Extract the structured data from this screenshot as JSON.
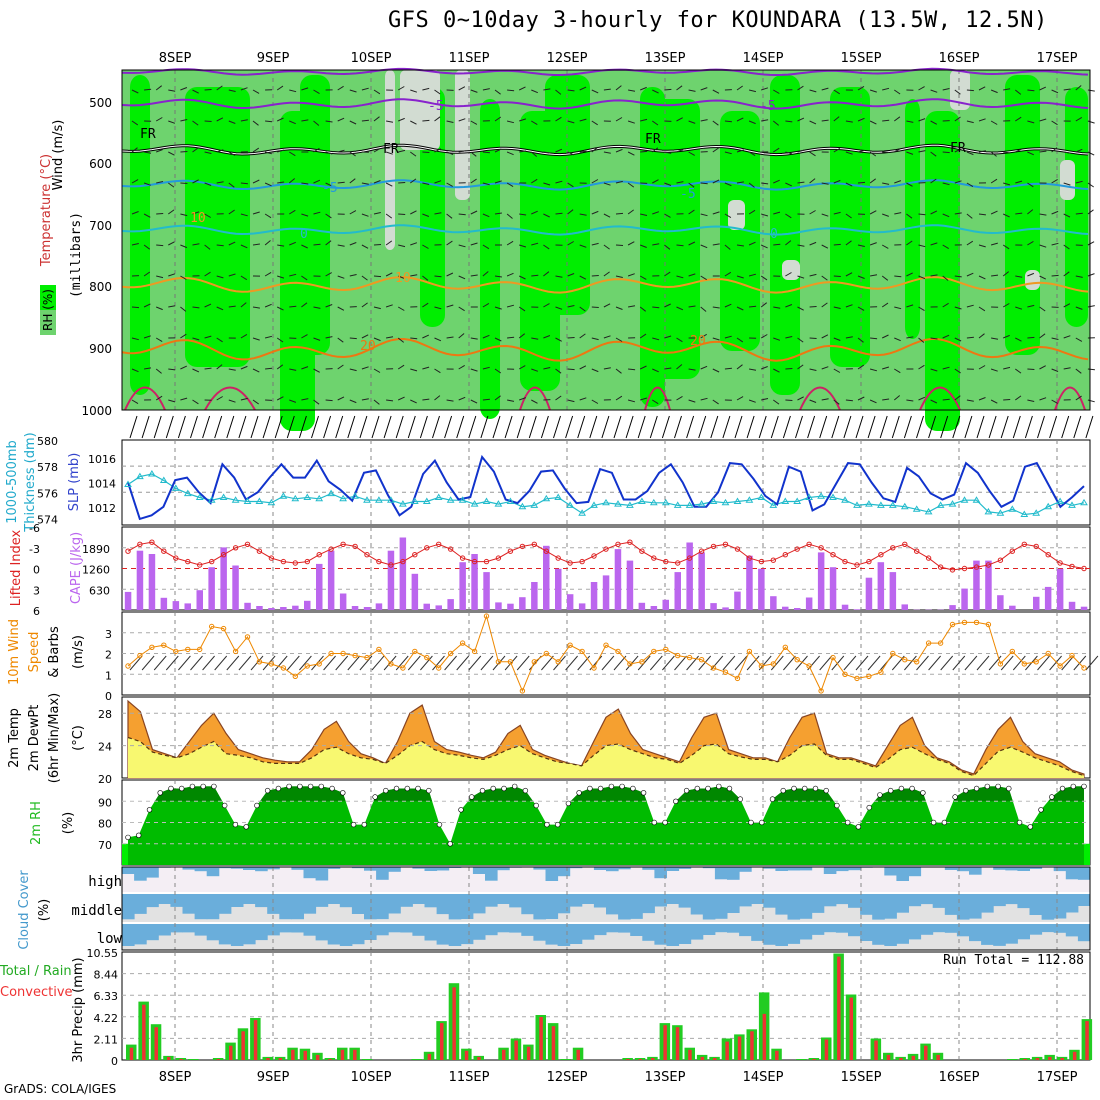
{
  "title": "GFS 0~10day 3-hourly for KOUNDARA (13.5W, 12.5N)",
  "footer": "GrADS: COLA/IGES",
  "dates": [
    "8SEP",
    "9SEP",
    "10SEP",
    "11SEP",
    "12SEP",
    "13SEP",
    "14SEP",
    "15SEP",
    "16SEP",
    "17SEP"
  ],
  "colors": {
    "rh_bright": "#00ee00",
    "rh_mid": "#6ed36e",
    "rh_pale": "#d2dcd2",
    "frame": "#000000",
    "grid": "#999999",
    "thickness": "#22bbcc",
    "slp": "#1133cc",
    "lifted": "#dd2222",
    "cape": "#bb66ee",
    "wind10": "#ee8800",
    "temp_fill": "#f5a030",
    "dew_fill": "#f8f870",
    "rh_dark": "#008800",
    "rh_green": "#00bb00",
    "cloud_blue": "#6aaedb",
    "cloud_gray": "#e2e2e2",
    "cloud_high_bg": "#f4eef4",
    "precip_total": "#22cc22",
    "precip_conv": "#ee3333"
  },
  "panels": {
    "upper": {
      "labels": {
        "wind": "Wind (m/s)",
        "temp": "Temperature (°C)",
        "rh": "RH (%)",
        "unit": "(millibars)"
      },
      "yticks": [
        "500",
        "600",
        "700",
        "800",
        "900",
        "1000"
      ],
      "contour_labels": [
        "-5",
        "-5",
        "FR",
        "FR",
        "FR",
        "FR",
        "-5",
        "-5",
        "0",
        "0",
        "10",
        "10",
        "20",
        "20"
      ]
    },
    "thickness": {
      "label1": "1000-500mb",
      "label2": "Thickness (dm)",
      "label3": "SLP (mb)",
      "yticks_left": [
        "580",
        "578",
        "576",
        "574"
      ],
      "yticks_right": [
        "1016",
        "1014",
        "1012"
      ]
    },
    "lifted": {
      "label1": "Lifted Index",
      "label2": "CAPE (J/kg)",
      "yticks_left": [
        "-6",
        "-3",
        "0",
        "3",
        "6"
      ],
      "yticks_right": [
        "1890",
        "1260",
        "630"
      ]
    },
    "wind10": {
      "label1": "10m Wind",
      "label2": "Speed",
      "label3": "& Barbs",
      "unit": "(m/s)",
      "yticks": [
        "3",
        "2",
        "1",
        "0"
      ]
    },
    "temp2m": {
      "label1": "2m Temp",
      "label2": "2m DewPt",
      "label3": "(6hr Min/Max)",
      "unit": "(°C)",
      "yticks": [
        "28",
        "24",
        "20"
      ]
    },
    "rh2m": {
      "label1": "2m RH",
      "unit": "(%)",
      "yticks": [
        "90",
        "80",
        "70"
      ]
    },
    "cloud": {
      "label1": "Cloud Cover",
      "unit": "(%)",
      "levels": [
        "high",
        "middle",
        "low"
      ]
    },
    "precip": {
      "label1": "Total / Rain",
      "label2": "Convective",
      "unit": "3hr Precip (mm)",
      "yticks": [
        "10.55",
        "8.44",
        "6.33",
        "4.22",
        "2.11",
        "0"
      ],
      "run_total": "Run Total = 112.88"
    }
  },
  "chart_data": [
    {
      "type": "line",
      "name": "thickness_slp",
      "x_step_hours": 3,
      "thickness_dm": [
        576.6,
        577.2,
        577.4,
        576.9,
        576.3,
        575.9,
        575.6,
        575.4,
        575.6,
        575.4,
        575.3,
        575.3,
        575.2,
        575.7,
        575.5,
        575.6,
        575.5,
        575.9,
        575.5,
        575.7,
        575.4,
        575.4,
        575.4,
        575.1,
        575.3,
        575.3,
        575.6,
        575.4,
        575.4,
        575.1,
        575.3,
        575.1,
        575.3,
        574.9,
        575.0,
        575.5,
        575.6,
        575.0,
        574.4,
        575.0,
        575.2,
        575.1,
        575.0,
        575.3,
        575.2,
        575.2,
        575.0,
        575.0,
        575.1,
        575.3,
        575.2,
        575.3,
        575.4,
        575.6,
        575.0,
        575.3,
        575.3,
        575.6,
        575.7,
        575.6,
        575.4,
        575.0,
        575.1,
        575.0,
        575.0,
        574.9,
        574.7,
        574.5,
        575.0,
        575.1,
        575.4,
        575.4,
        574.5,
        574.4,
        574.7,
        574.3,
        574.4,
        574.9,
        575.3,
        575.0,
        575.2
      ],
      "slp_mb": [
        1014.0,
        1011.0,
        1011.3,
        1012.0,
        1014.2,
        1014.4,
        1013.2,
        1012.3,
        1015.5,
        1014.4,
        1012.6,
        1013.2,
        1014.4,
        1015.5,
        1014.4,
        1014.4,
        1015.8,
        1014.1,
        1013.4,
        1012.5,
        1014.8,
        1015.0,
        1013.0,
        1011.3,
        1012.0,
        1014.7,
        1015.8,
        1014.0,
        1012.6,
        1012.8,
        1016.1,
        1014.9,
        1012.6,
        1012.3,
        1013.3,
        1014.9,
        1015.0,
        1013.5,
        1012.3,
        1012.4,
        1015.1,
        1014.8,
        1012.6,
        1012.6,
        1013.3,
        1014.8,
        1015.5,
        1014.0,
        1012.0,
        1012.0,
        1013.2,
        1015.6,
        1015.5,
        1014.3,
        1012.9,
        1012.2,
        1015.3,
        1014.9,
        1011.7,
        1012.2,
        1013.9,
        1015.6,
        1015.5,
        1014.0,
        1012.7,
        1012.4,
        1015.2,
        1014.5,
        1013.1,
        1012.6,
        1013.0,
        1015.6,
        1014.8,
        1013.3,
        1012.0,
        1012.5,
        1015.3,
        1015.6,
        1013.8,
        1012.0,
        1012.8,
        1013.7
      ]
    },
    {
      "type": "bar",
      "name": "lifted_index_cape",
      "lifted_index": [
        -2.5,
        -3.5,
        -3.8,
        -2.5,
        -1.5,
        -1.0,
        -0.5,
        -1.0,
        -2.0,
        -3.0,
        -3.5,
        -2.5,
        -1.5,
        -1.0,
        -0.8,
        -1.0,
        -2.0,
        -2.8,
        -3.5,
        -3.2,
        -2.0,
        -1.0,
        -0.5,
        -1.0,
        -2.0,
        -3.0,
        -3.5,
        -2.8,
        -1.5,
        -1.0,
        -1.0,
        -1.5,
        -2.5,
        -3.2,
        -3.5,
        -2.5,
        -1.5,
        -0.8,
        -1.0,
        -1.8,
        -2.8,
        -3.5,
        -3.8,
        -2.5,
        -1.5,
        -1.0,
        -0.8,
        -1.5,
        -2.5,
        -3.2,
        -3.5,
        -2.8,
        -1.5,
        -1.0,
        -1.2,
        -2.0,
        -2.8,
        -3.5,
        -3.0,
        -2.0,
        -1.0,
        -0.5,
        -1.0,
        -2.0,
        -3.0,
        -3.5,
        -2.5,
        -1.5,
        -0.2,
        0.2,
        0.0,
        -0.2,
        -0.5,
        -1.2,
        -2.5,
        -3.5,
        -3.2,
        -2.0,
        -0.8,
        -0.3,
        0.0
      ],
      "cape_jkg": [
        550,
        1800,
        1700,
        370,
        270,
        200,
        600,
        1300,
        1900,
        1350,
        220,
        120,
        60,
        90,
        130,
        280,
        1400,
        1800,
        500,
        120,
        90,
        200,
        1800,
        2200,
        1100,
        190,
        140,
        330,
        1450,
        1700,
        1150,
        230,
        190,
        390,
        850,
        1950,
        1250,
        480,
        200,
        850,
        1050,
        1850,
        1500,
        220,
        120,
        310,
        1150,
        2050,
        1750,
        210,
        80,
        560,
        1650,
        1250,
        420,
        100,
        60,
        380,
        1750,
        1300,
        160,
        20,
        980,
        1450,
        1150,
        170,
        10,
        10,
        10,
        150,
        650,
        1500,
        1500,
        450,
        130,
        0,
        400,
        700,
        1250,
        250,
        100
      ]
    },
    {
      "type": "line",
      "name": "wind10m_speed_ms",
      "values": [
        1.4,
        1.9,
        2.3,
        2.4,
        2.1,
        2.2,
        2.2,
        3.3,
        3.2,
        2.1,
        2.8,
        1.6,
        1.5,
        1.3,
        0.9,
        1.4,
        1.5,
        2.0,
        2.0,
        1.9,
        1.8,
        2.2,
        1.5,
        1.3,
        2.1,
        1.8,
        1.3,
        2.0,
        2.5,
        2.1,
        3.8,
        1.6,
        1.6,
        0.2,
        1.6,
        2.0,
        1.6,
        2.4,
        2.1,
        1.3,
        2.4,
        2.1,
        1.5,
        1.6,
        2.1,
        2.2,
        1.9,
        1.8,
        1.7,
        1.3,
        1.1,
        0.8,
        2.1,
        1.4,
        1.5,
        2.3,
        1.7,
        1.4,
        0.2,
        1.8,
        1.0,
        0.8,
        0.9,
        1.1,
        2.0,
        1.7,
        1.6,
        2.5,
        2.5,
        3.4,
        3.5,
        3.5,
        3.4,
        1.5,
        2.1,
        1.5,
        1.6,
        2.0,
        1.4,
        1.9,
        1.3
      ]
    },
    {
      "type": "area",
      "name": "temp2m_dewpt",
      "temp_c": [
        29.5,
        28.2,
        23.5,
        23.0,
        22.5,
        24.5,
        26.5,
        28.0,
        25.5,
        23.5,
        23.0,
        22.5,
        22.2,
        22.0,
        22.0,
        23.5,
        26.0,
        27.0,
        24.5,
        23.0,
        22.5,
        21.8,
        24.5,
        28.0,
        29.0,
        24.5,
        23.5,
        23.2,
        22.8,
        22.5,
        23.2,
        25.5,
        26.5,
        23.5,
        22.8,
        22.3,
        21.8,
        21.5,
        24.5,
        27.5,
        28.5,
        25.5,
        23.5,
        23.0,
        22.5,
        22.0,
        25.0,
        27.5,
        28.0,
        23.5,
        23.0,
        22.5,
        22.5,
        22.0,
        25.0,
        27.5,
        28.0,
        23.0,
        22.5,
        22.5,
        22.0,
        21.5,
        24.0,
        26.5,
        27.5,
        24.0,
        22.5,
        22.0,
        21.0,
        20.5,
        23.5,
        26.0,
        27.5,
        24.5,
        23.0,
        22.5,
        22.0,
        21.0,
        20.5
      ],
      "dewpt_c": [
        25.0,
        24.5,
        23.2,
        22.8,
        22.5,
        23.0,
        23.8,
        24.5,
        23.0,
        22.8,
        22.5,
        22.0,
        21.8,
        21.8,
        21.8,
        22.5,
        23.5,
        23.8,
        23.0,
        22.5,
        22.3,
        21.8,
        22.8,
        24.0,
        24.5,
        23.5,
        23.0,
        22.8,
        22.5,
        22.3,
        22.8,
        23.5,
        24.0,
        23.0,
        22.5,
        22.0,
        21.8,
        21.5,
        22.8,
        24.0,
        24.2,
        23.5,
        23.0,
        22.5,
        22.3,
        21.8,
        22.8,
        24.0,
        24.2,
        23.0,
        22.6,
        22.3,
        22.3,
        22.0,
        22.8,
        24.0,
        24.2,
        22.8,
        22.3,
        22.3,
        21.8,
        21.3,
        22.3,
        23.5,
        23.8,
        23.0,
        22.3,
        21.8,
        20.8,
        20.3,
        21.8,
        23.3,
        23.8,
        23.2,
        22.5,
        22.0,
        21.5,
        20.8,
        20.3
      ]
    },
    {
      "type": "area",
      "name": "rh2m_pct",
      "values": [
        73,
        74,
        86,
        94,
        96,
        96,
        97,
        97,
        97,
        88,
        79,
        78,
        88,
        95,
        96,
        97,
        97,
        97,
        97,
        96,
        94,
        79,
        79,
        92,
        95,
        96,
        96,
        96,
        95,
        79,
        70,
        86,
        92,
        95,
        96,
        96,
        97,
        95,
        88,
        79,
        79,
        89,
        94,
        96,
        96,
        97,
        97,
        96,
        94,
        80,
        80,
        90,
        95,
        96,
        96,
        97,
        96,
        91,
        80,
        80,
        91,
        95,
        96,
        96,
        96,
        95,
        88,
        80,
        78,
        87,
        93,
        95,
        96,
        96,
        94,
        80,
        80,
        92,
        95,
        96,
        97,
        97,
        96,
        80,
        78,
        86,
        92,
        96,
        97,
        97
      ]
    },
    {
      "type": "bar",
      "name": "precip_3hr_mm",
      "total": [
        1.5,
        5.7,
        3.5,
        0.4,
        0.2,
        0.1,
        0.0,
        0.2,
        1.7,
        3.1,
        4.1,
        0.3,
        0.3,
        1.2,
        1.1,
        0.7,
        0.2,
        1.2,
        1.2,
        0.1,
        0.0,
        0.0,
        0.0,
        0.1,
        0.8,
        3.8,
        7.5,
        1.1,
        0.4,
        0.0,
        1.2,
        2.1,
        1.5,
        4.4,
        3.6,
        0.1,
        1.2,
        0.0,
        0.0,
        0.0,
        0.2,
        0.2,
        0.3,
        3.6,
        3.4,
        1.2,
        0.5,
        0.3,
        2.1,
        2.5,
        3.0,
        6.6,
        1.1,
        0.0,
        0.1,
        0.2,
        2.2,
        10.4,
        6.4,
        0.0,
        2.1,
        0.7,
        0.3,
        0.6,
        1.6,
        0.7,
        0.0,
        0.0,
        0.0,
        0.0,
        0.0,
        0.1,
        0.2,
        0.3,
        0.5,
        0.3,
        1.0,
        4.0
      ],
      "convective": [
        1.2,
        5.4,
        3.2,
        0.3,
        0.1,
        0.0,
        0.0,
        0.1,
        1.4,
        2.8,
        3.9,
        0.2,
        0.2,
        1.0,
        0.9,
        0.5,
        0.1,
        1.0,
        1.0,
        0.0,
        0.0,
        0.0,
        0.0,
        0.0,
        0.6,
        3.6,
        7.1,
        0.9,
        0.3,
        0.0,
        1.0,
        1.9,
        1.3,
        4.2,
        3.3,
        0.0,
        1.0,
        0.0,
        0.0,
        0.0,
        0.1,
        0.1,
        0.2,
        3.4,
        3.2,
        1.0,
        0.3,
        0.2,
        1.8,
        2.3,
        2.8,
        4.5,
        0.9,
        0.0,
        0.0,
        0.1,
        2.0,
        10.1,
        6.1,
        0.0,
        1.9,
        0.5,
        0.2,
        0.4,
        1.4,
        0.5,
        0.0,
        0.0,
        0.0,
        0.0,
        0.0,
        0.0,
        0.1,
        0.2,
        0.3,
        0.2,
        0.8,
        3.8
      ]
    }
  ]
}
